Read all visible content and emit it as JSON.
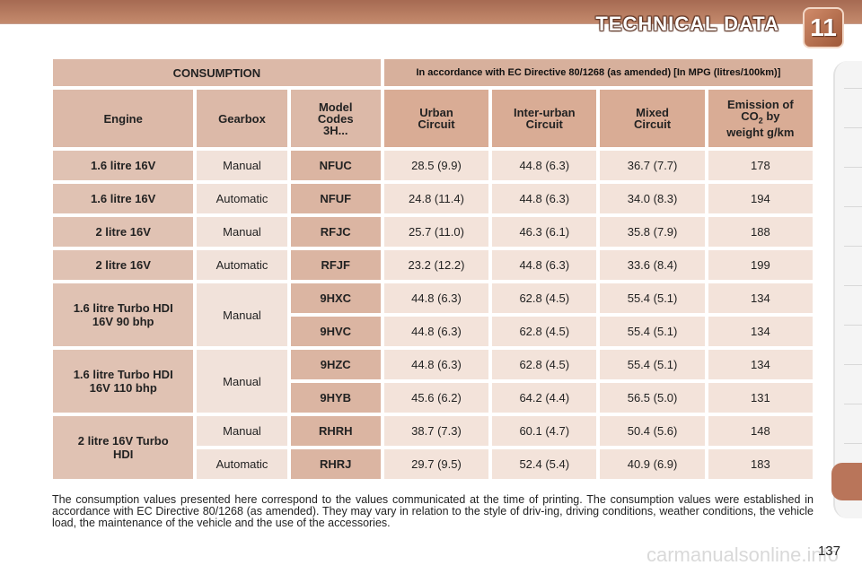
{
  "header": {
    "title": "TECHNICAL DATA",
    "chapter": "11"
  },
  "table": {
    "consumption_label": "CONSUMPTION",
    "directive_label": "In accordance with EC Directive 80/1268 (as amended) [In MPG (litres/100km)]",
    "columns": {
      "engine": "Engine",
      "gearbox": "Gearbox",
      "model_codes": "Model Codes 3H...",
      "urban": "Urban Circuit",
      "inter_urban": "Inter-urban Circuit",
      "mixed": "Mixed Circuit",
      "emission_a": "Emission of",
      "emission_co": "CO",
      "emission_sub": "2",
      "emission_by": " by",
      "emission_b": "weight g/km"
    },
    "rows": [
      {
        "engine": "1.6 litre 16V",
        "gearbox": "Manual",
        "code": "NFUC",
        "urban": "28.5 (9.9)",
        "inter": "44.8 (6.3)",
        "mixed": "36.7 (7.7)",
        "emission": "178"
      },
      {
        "engine": "1.6 litre 16V",
        "gearbox": "Automatic",
        "code": "NFUF",
        "urban": "24.8 (11.4)",
        "inter": "44.8 (6.3)",
        "mixed": "34.0 (8.3)",
        "emission": "194"
      },
      {
        "engine": "2 litre 16V",
        "gearbox": "Manual",
        "code": "RFJC",
        "urban": "25.7 (11.0)",
        "inter": "46.3 (6.1)",
        "mixed": "35.8 (7.9)",
        "emission": "188"
      },
      {
        "engine": "2 litre 16V",
        "gearbox": "Automatic",
        "code": "RFJF",
        "urban": "23.2 (12.2)",
        "inter": "44.8 (6.3)",
        "mixed": "33.6 (8.4)",
        "emission": "199"
      },
      {
        "engine": "1.6 litre Turbo HDI 16V 90 bhp",
        "gearbox": "Manual",
        "code": "9HXC",
        "urban": "44.8 (6.3)",
        "inter": "62.8 (4.5)",
        "mixed": "55.4 (5.1)",
        "emission": "134"
      },
      {
        "code": "9HVC",
        "urban": "44.8 (6.3)",
        "inter": "62.8 (4.5)",
        "mixed": "55.4 (5.1)",
        "emission": "134"
      },
      {
        "engine": "1.6 litre Turbo HDI 16V 110 bhp",
        "gearbox": "Manual",
        "code": "9HZC",
        "urban": "44.8 (6.3)",
        "inter": "62.8 (4.5)",
        "mixed": "55.4 (5.1)",
        "emission": "134"
      },
      {
        "code": "9HYB",
        "urban": "45.6 (6.2)",
        "inter": "64.2 (4.4)",
        "mixed": "56.5 (5.0)",
        "emission": "131"
      },
      {
        "engine": "2 litre 16V Turbo HDI",
        "gearbox": "Manual",
        "code": "RHRH",
        "urban": "38.7 (7.3)",
        "inter": "60.1 (4.7)",
        "mixed": "50.4 (5.6)",
        "emission": "148"
      },
      {
        "gearbox": "Automatic",
        "code": "RHRJ",
        "urban": "29.7 (9.5)",
        "inter": "52.4 (5.4)",
        "mixed": "40.9 (6.9)",
        "emission": "183"
      }
    ]
  },
  "footnote": "The consumption values presented here correspond to the values communicated at the time of printing. The consumption values were established in accordance with EC Directive 80/1268 (as amended). They may vary in relation to the style of driv-ing, driving conditions, weather conditions, the vehicle load, the maintenance of the vehicle and the use of the accessories.",
  "page_number": "137",
  "watermark": "carmanualsonline.info"
}
